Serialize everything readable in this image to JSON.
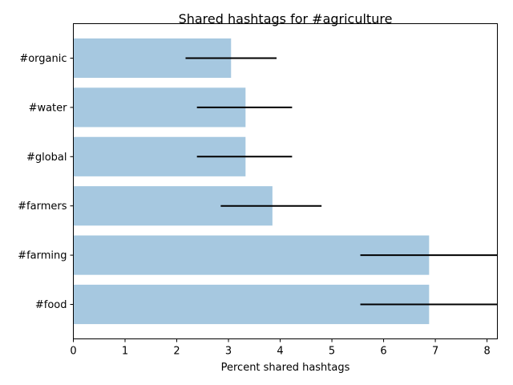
{
  "chart_data": {
    "type": "bar",
    "orientation": "horizontal",
    "title": "Shared hashtags for #agriculture",
    "xlabel": "Percent shared hashtags",
    "ylabel": "",
    "xlim": [
      0,
      8.2
    ],
    "x_ticks": [
      0,
      1,
      2,
      3,
      4,
      5,
      6,
      7,
      8
    ],
    "categories": [
      "#organic",
      "#water",
      "#global",
      "#farmers",
      "#farming",
      "#food"
    ],
    "values": [
      3.05,
      3.33,
      3.33,
      3.85,
      6.88,
      6.88
    ],
    "error_low": [
      2.17,
      2.39,
      2.39,
      2.85,
      5.55,
      5.55
    ],
    "error_high": [
      3.93,
      4.23,
      4.23,
      4.8,
      8.2,
      8.2
    ],
    "grid": false,
    "colors": {
      "bar": "#a6c8e0",
      "error": "#000000",
      "axis": "#000000"
    }
  }
}
